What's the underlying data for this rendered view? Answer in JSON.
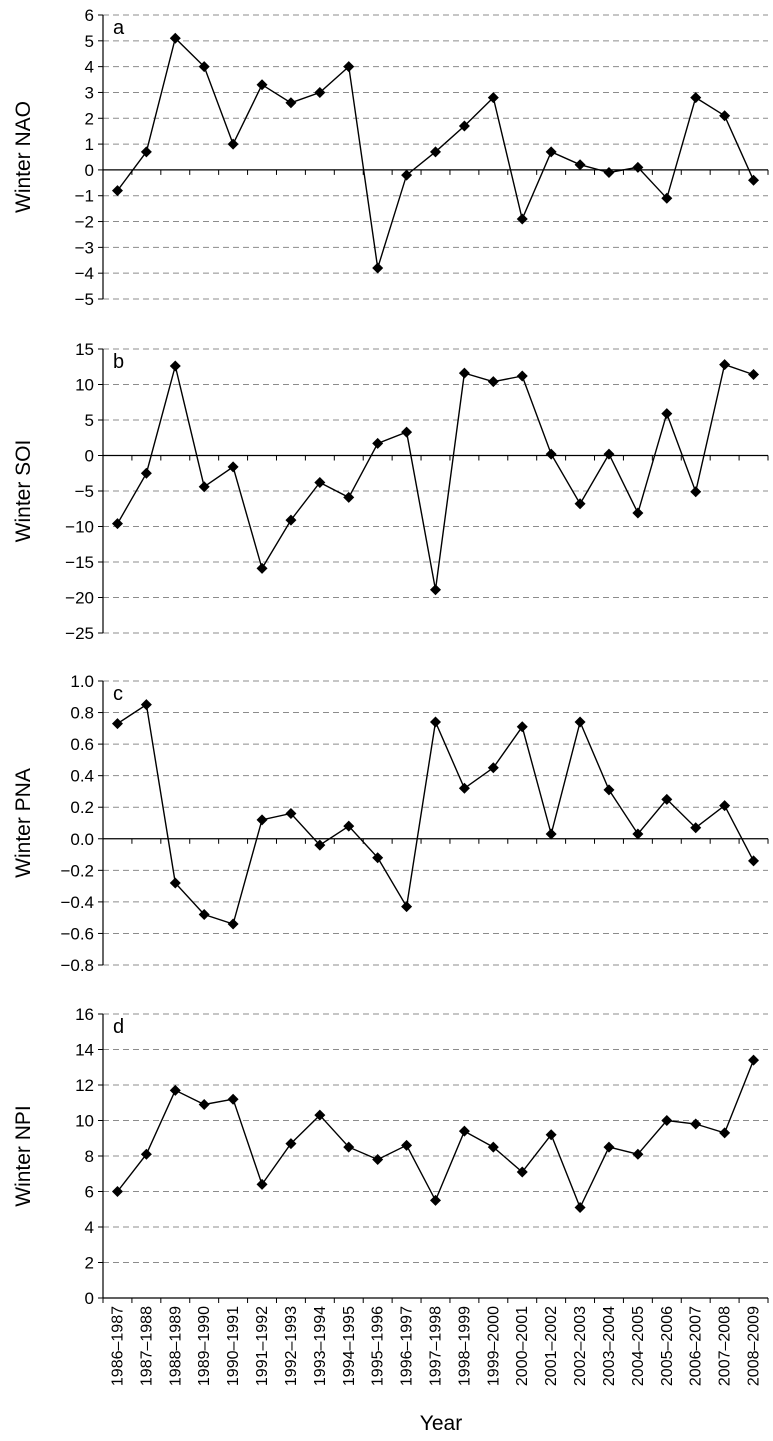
{
  "chart_data": [
    {
      "type": "line",
      "panel": "a",
      "ylabel": "Winter NAO",
      "ylim": [
        -5,
        6
      ],
      "yticks": [
        6,
        5,
        4,
        3,
        2,
        1,
        0,
        -1,
        -2,
        -3,
        -4,
        -5
      ],
      "ytick_labels": [
        "6",
        "5",
        "4",
        "3",
        "2",
        "1",
        "0",
        "−1",
        "−2",
        "−3",
        "−4",
        "−5"
      ],
      "grid": true,
      "values": [
        -0.8,
        0.7,
        5.1,
        4.0,
        1.0,
        3.3,
        2.6,
        3.0,
        4.0,
        -3.8,
        -0.2,
        0.7,
        1.7,
        2.8,
        -1.9,
        0.7,
        0.2,
        -0.1,
        0.1,
        -1.1,
        2.8,
        2.1,
        -0.4
      ]
    },
    {
      "type": "line",
      "panel": "b",
      "ylabel": "Winter SOI",
      "ylim": [
        -25,
        15
      ],
      "yticks": [
        15,
        10,
        5,
        0,
        -5,
        -10,
        -15,
        -20,
        -25
      ],
      "ytick_labels": [
        "15",
        "10",
        "5",
        "0",
        "−5",
        "−10",
        "−15",
        "−20",
        "−25"
      ],
      "grid": true,
      "values": [
        -9.6,
        -2.5,
        12.6,
        -4.4,
        -1.6,
        -15.9,
        -9.1,
        -3.8,
        -5.9,
        1.7,
        3.3,
        -18.9,
        11.6,
        10.4,
        11.2,
        0.2,
        -6.8,
        0.2,
        -8.1,
        5.9,
        -5.1,
        12.8,
        11.4
      ]
    },
    {
      "type": "line",
      "panel": "c",
      "ylabel": "Winter PNA",
      "ylim": [
        -0.8,
        1.0
      ],
      "yticks": [
        1.0,
        0.8,
        0.6,
        0.4,
        0.2,
        0.0,
        -0.2,
        -0.4,
        -0.6,
        -0.8
      ],
      "ytick_labels": [
        "1.0",
        "0.8",
        "0.6",
        "0.4",
        "0.2",
        "0.0",
        "−0.2",
        "−0.4",
        "−0.6",
        "−0.8"
      ],
      "grid": true,
      "values": [
        0.73,
        0.85,
        -0.28,
        -0.48,
        -0.54,
        0.12,
        0.16,
        -0.04,
        0.08,
        -0.12,
        -0.43,
        0.74,
        0.32,
        0.45,
        0.71,
        0.03,
        0.74,
        0.31,
        0.03,
        0.25,
        0.07,
        0.21,
        -0.14
      ]
    },
    {
      "type": "line",
      "panel": "d",
      "ylabel": "Winter NPI",
      "ylim": [
        0,
        16
      ],
      "yticks": [
        16,
        14,
        12,
        10,
        8,
        6,
        4,
        2,
        0
      ],
      "ytick_labels": [
        "16",
        "14",
        "12",
        "10",
        "8",
        "6",
        "4",
        "2",
        "0"
      ],
      "grid": true,
      "values": [
        6.0,
        8.1,
        11.7,
        10.9,
        11.2,
        6.4,
        8.7,
        10.3,
        8.5,
        7.8,
        8.6,
        5.5,
        9.4,
        8.5,
        7.1,
        9.2,
        5.1,
        8.5,
        8.1,
        10.0,
        9.8,
        9.3,
        13.4
      ]
    }
  ],
  "x_categories": [
    "1986–1987",
    "1987–1988",
    "1988–1989",
    "1989–1990",
    "1990–1991",
    "1991–1992",
    "1992–1993",
    "1993–1994",
    "1994–1995",
    "1995–1996",
    "1996–1997",
    "1997–1998",
    "1998–1999",
    "1999–2000",
    "2000–2001",
    "2001–2002",
    "2002–2003",
    "2003–2004",
    "2004–2005",
    "2005–2006",
    "2006–2007",
    "2007–2008",
    "2008–2009"
  ],
  "xlabel": "Year",
  "colors": {
    "line": "#000000",
    "grid": "#8c8c8c",
    "axis": "#000000"
  }
}
